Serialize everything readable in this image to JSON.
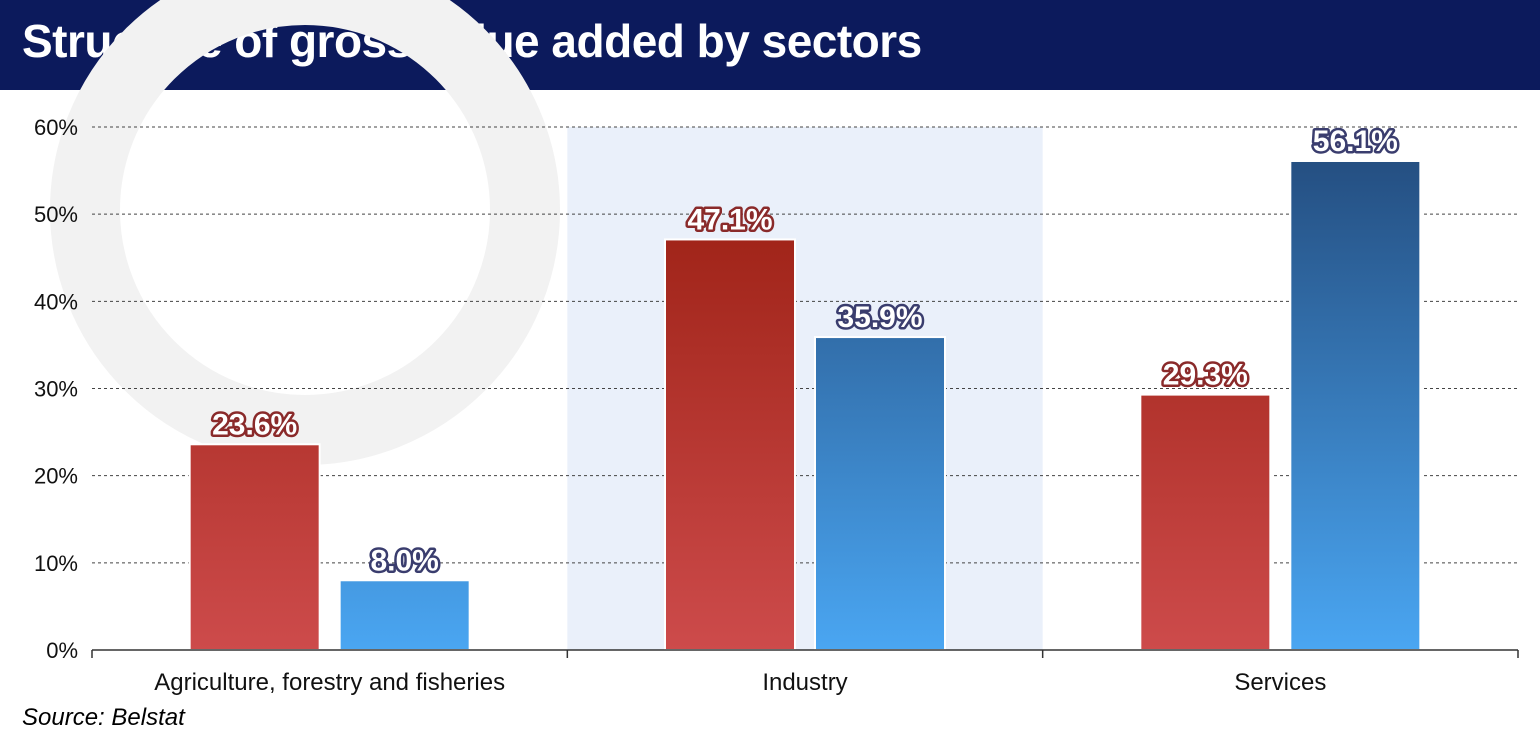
{
  "header": {
    "title": "Structure of gross value added by sectors"
  },
  "footer": {
    "source": "Source: Belstat"
  },
  "colors": {
    "header_bg": "#0c1a5c",
    "series_a_top": "#951a0c",
    "series_a_bottom": "#cd4b4b",
    "series_a_label_outline": "#8a2a2a",
    "series_b_top": "#22497a",
    "series_b_bottom": "#4aa6f2",
    "series_b_label_outline": "#3a3d6e",
    "highlight_band": "#eaf0fa",
    "watermark": "#f2f2f2"
  },
  "chart_data": {
    "type": "bar",
    "title": "Structure of gross value added by sectors",
    "xlabel": "",
    "ylabel": "",
    "categories": [
      "Agriculture, forestry and fisheries",
      "Industry",
      "Services"
    ],
    "series": [
      {
        "values": [
          23.6,
          47.1,
          29.3
        ],
        "labels": [
          "23.6%",
          "47.1%",
          "29.3%"
        ]
      },
      {
        "values": [
          8.0,
          35.9,
          56.1
        ],
        "labels": [
          "8.0%",
          "35.9%",
          "56.1%"
        ]
      }
    ],
    "ylim": [
      0,
      60
    ],
    "yticks": [
      0,
      10,
      20,
      30,
      40,
      50,
      60
    ],
    "ytick_labels": [
      "0%",
      "10%",
      "20%",
      "30%",
      "40%",
      "50%",
      "60%"
    ],
    "grid": "horizontal dashed",
    "legend": "none",
    "highlighted_category": "Industry"
  }
}
